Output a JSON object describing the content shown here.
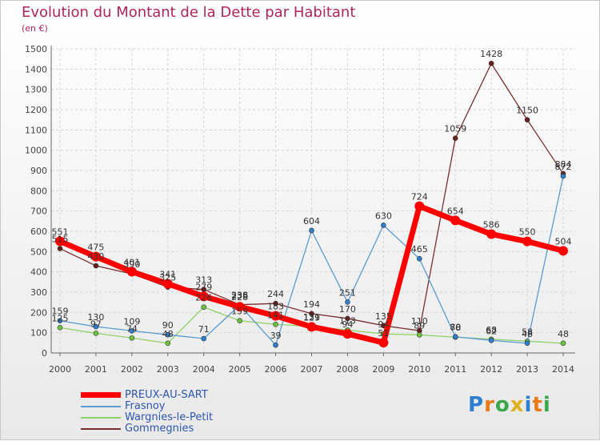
{
  "header": {
    "title": "Evolution du Montant de la Dette par Habitant",
    "unit": "(en €)"
  },
  "logo": {
    "letters": [
      "P",
      "r",
      "o",
      "x",
      "i",
      "t",
      "i"
    ],
    "colors": [
      "#2f7fd0",
      "#e87a1a",
      "#39a84a",
      "#e0b21e",
      "#2f7fd0",
      "#e87a1a",
      "#39a84a"
    ]
  },
  "chart_data": {
    "type": "line",
    "title": "Evolution du Montant de la Dette par Habitant",
    "ylabel": "(en €)",
    "ylim": [
      0,
      1500
    ],
    "yticks": [
      0,
      100,
      200,
      300,
      400,
      500,
      600,
      700,
      800,
      900,
      1000,
      1100,
      1200,
      1300,
      1400,
      1500
    ],
    "grid": true,
    "legend_position": "bottom-left",
    "x": [
      "2000",
      "2001",
      "2002",
      "2003",
      "2004",
      "2005",
      "2006",
      "2007",
      "2008",
      "2009",
      "2010",
      "2011",
      "2012",
      "2013",
      "2014"
    ],
    "series": [
      {
        "name": "PREUX-AU-SART",
        "color": "#ff0000",
        "point_color": "#ff0000",
        "width": 7,
        "radius": 6,
        "values": [
          551,
          475,
          401,
          341,
          279,
          228,
          183,
          129,
          94,
          51,
          724,
          654,
          586,
          550,
          504
        ],
        "labels": [
          "551",
          "475",
          "401",
          "341",
          "279",
          "228",
          "183",
          "129",
          "94",
          "51",
          "724",
          "654",
          "586",
          "550",
          "504"
        ]
      },
      {
        "name": "Frasnoy",
        "color": "#5b9bd1",
        "point_color": "#2f7fd0",
        "width": 1.3,
        "radius": 3,
        "values": [
          159,
          130,
          109,
          90,
          71,
          236,
          39,
          604,
          251,
          630,
          465,
          80,
          62,
          48,
          872
        ],
        "labels": [
          "159",
          "130",
          "109",
          "90",
          "71",
          "236",
          "39",
          "604",
          "251",
          "630",
          "465",
          "80",
          "62",
          "48",
          "872"
        ]
      },
      {
        "name": "Wargnies-le-Petit",
        "color": "#8fd16a",
        "point_color": "#6cc43a",
        "width": 1.3,
        "radius": 3,
        "values": [
          125,
          97,
          74,
          48,
          226,
          159,
          141,
          131,
          113,
          94,
          89,
          78,
          68,
          58,
          48
        ],
        "labels": [
          "125",
          "97",
          "74",
          "48",
          "226",
          "159",
          "141",
          "131",
          "113",
          "94",
          "89",
          "78",
          "68",
          "58",
          "48"
        ]
      },
      {
        "name": "Gommegnies",
        "color": "#7a2e2e",
        "point_color": "#6a1f1f",
        "width": 1.3,
        "radius": 3,
        "values": [
          515,
          430,
          390,
          325,
          313,
          238,
          244,
          194,
          170,
          135,
          110,
          1059,
          1428,
          1150,
          884
        ],
        "labels": [
          "515",
          "430",
          "390",
          "325",
          "313",
          "238",
          "244",
          "194",
          "170",
          "135",
          "110",
          "1059",
          "1428",
          "1150",
          "884"
        ]
      }
    ]
  }
}
